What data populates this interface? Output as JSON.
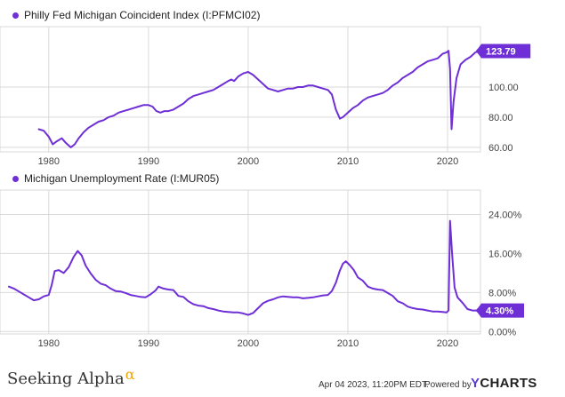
{
  "colors": {
    "series": "#6f2fd6",
    "grid": "#d9d9d9",
    "axis_text": "#444444",
    "badge_text": "#ffffff"
  },
  "chart_data": [
    {
      "type": "line",
      "legend": "Philly Fed Michigan Coincident Index (I:PFMCI02)",
      "x_ticks": [
        "1980",
        "1990",
        "2000",
        "2010",
        "2020"
      ],
      "y_ticks": [
        "60.00",
        "80.00",
        "100.00"
      ],
      "y_tick_values": [
        60,
        80,
        100
      ],
      "ylim": [
        57,
        140
      ],
      "xlim": [
        1976.0,
        2023.3
      ],
      "last_value_label": "123.79",
      "last_value": 123.79,
      "series": [
        {
          "x": [
            1979.0,
            1979.5,
            1980.0,
            1980.4,
            1980.8,
            1981.3,
            1981.7,
            1982.2,
            1982.6,
            1983.0,
            1983.5,
            1984.0,
            1984.5,
            1985.0,
            1985.5,
            1986.0,
            1986.5,
            1987.0,
            1987.5,
            1988.0,
            1988.5,
            1989.0,
            1989.5,
            1990.0,
            1990.4,
            1990.8,
            1991.2,
            1991.6,
            1992.0,
            1992.5,
            1993.0,
            1993.5,
            1994.0,
            1994.5,
            1995.0,
            1995.5,
            1996.0,
            1996.5,
            1997.0,
            1997.5,
            1998.0,
            1998.3,
            1998.6,
            1999.0,
            1999.5,
            2000.0,
            2000.5,
            2001.0,
            2001.5,
            2002.0,
            2002.5,
            2003.0,
            2003.5,
            2004.0,
            2004.5,
            2005.0,
            2005.5,
            2006.0,
            2006.5,
            2007.0,
            2007.5,
            2008.0,
            2008.4,
            2008.8,
            2009.2,
            2009.5,
            2010.0,
            2010.5,
            2011.0,
            2011.5,
            2012.0,
            2012.5,
            2013.0,
            2013.5,
            2014.0,
            2014.5,
            2015.0,
            2015.5,
            2016.0,
            2016.5,
            2017.0,
            2017.5,
            2018.0,
            2018.5,
            2019.0,
            2019.5,
            2019.9,
            2020.1,
            2020.25,
            2020.4,
            2020.6,
            2020.9,
            2021.3,
            2021.8,
            2022.3,
            2022.8,
            2023.1
          ],
          "y": [
            72,
            71,
            67,
            62,
            64,
            66,
            63,
            60,
            62,
            66,
            70,
            73,
            75,
            77,
            78,
            80,
            81,
            83,
            84,
            85,
            86,
            87,
            88,
            88,
            87,
            84,
            83,
            84,
            84,
            85,
            87,
            89,
            92,
            94,
            95,
            96,
            97,
            98,
            100,
            102,
            104,
            105,
            104,
            107,
            109,
            110,
            108,
            105,
            102,
            99,
            98,
            97,
            98,
            99,
            99,
            100,
            100,
            101,
            101,
            100,
            99,
            98,
            95,
            85,
            79,
            80,
            83,
            86,
            88,
            91,
            93,
            94,
            95,
            96,
            98,
            101,
            103,
            106,
            108,
            110,
            113,
            115,
            117,
            118,
            119,
            122,
            123,
            124,
            112,
            72,
            90,
            106,
            115,
            118,
            120,
            123,
            123.79
          ]
        }
      ]
    },
    {
      "type": "line",
      "legend": "Michigan Unemployment Rate (I:MUR05)",
      "x_ticks": [
        "1980",
        "1990",
        "2000",
        "2010",
        "2020"
      ],
      "y_ticks": [
        "0.00%",
        "8.00%",
        "16.00%",
        "24.00%"
      ],
      "y_tick_values": [
        0,
        8,
        16,
        24
      ],
      "ylim": [
        -0.5,
        29
      ],
      "xlim": [
        1976.0,
        2023.3
      ],
      "last_value_label": "4.30%",
      "last_value": 4.3,
      "series": [
        {
          "x": [
            1976.0,
            1976.5,
            1977.0,
            1977.5,
            1978.0,
            1978.5,
            1979.0,
            1979.5,
            1980.0,
            1980.3,
            1980.6,
            1981.0,
            1981.5,
            1982.0,
            1982.5,
            1982.9,
            1983.3,
            1983.7,
            1984.2,
            1984.7,
            1985.2,
            1985.7,
            1986.2,
            1986.7,
            1987.2,
            1987.7,
            1988.2,
            1988.7,
            1989.2,
            1989.7,
            1990.2,
            1990.7,
            1991.0,
            1991.5,
            1992.0,
            1992.5,
            1993.0,
            1993.5,
            1994.0,
            1994.5,
            1995.0,
            1995.5,
            1996.0,
            1996.5,
            1997.0,
            1997.5,
            1998.0,
            1998.5,
            1999.0,
            1999.5,
            2000.0,
            2000.5,
            2001.0,
            2001.5,
            2002.0,
            2002.5,
            2003.0,
            2003.5,
            2004.0,
            2004.5,
            2005.0,
            2005.5,
            2006.0,
            2006.5,
            2007.0,
            2007.5,
            2008.0,
            2008.4,
            2008.8,
            2009.2,
            2009.5,
            2009.8,
            2010.2,
            2010.6,
            2011.0,
            2011.5,
            2012.0,
            2012.5,
            2013.0,
            2013.5,
            2014.0,
            2014.5,
            2015.0,
            2015.5,
            2016.0,
            2016.5,
            2017.0,
            2017.5,
            2018.0,
            2018.5,
            2019.0,
            2019.5,
            2019.9,
            2020.1,
            2020.25,
            2020.45,
            2020.7,
            2021.0,
            2021.5,
            2022.0,
            2022.5,
            2023.1
          ],
          "y": [
            9.2,
            8.8,
            8.2,
            7.6,
            7.0,
            6.4,
            6.6,
            7.2,
            7.5,
            9.6,
            12.4,
            12.6,
            12.0,
            13.2,
            15.3,
            16.5,
            15.6,
            13.5,
            11.9,
            10.6,
            9.8,
            9.5,
            8.8,
            8.3,
            8.2,
            7.9,
            7.5,
            7.3,
            7.1,
            7.0,
            7.6,
            8.4,
            9.2,
            8.8,
            8.6,
            8.5,
            7.3,
            7.1,
            6.2,
            5.6,
            5.3,
            5.2,
            4.8,
            4.6,
            4.3,
            4.1,
            4.0,
            3.9,
            3.9,
            3.7,
            3.4,
            3.8,
            4.8,
            5.8,
            6.3,
            6.6,
            7.0,
            7.2,
            7.1,
            7.0,
            7.0,
            6.8,
            6.9,
            7.0,
            7.2,
            7.4,
            7.5,
            8.3,
            10.0,
            12.5,
            13.9,
            14.4,
            13.6,
            12.6,
            11.1,
            10.4,
            9.2,
            8.8,
            8.6,
            8.5,
            7.9,
            7.3,
            6.2,
            5.8,
            5.1,
            4.8,
            4.6,
            4.5,
            4.3,
            4.1,
            4.1,
            4.0,
            3.9,
            4.3,
            22.7,
            16.0,
            9.0,
            7.0,
            5.9,
            4.6,
            4.3,
            4.3
          ]
        }
      ]
    }
  ],
  "footer": {
    "brand": "Seeking Alpha",
    "brand_symbol": "α",
    "date": "Apr 04 2023, 11:20PM EDT.",
    "powered_by": "Powered by",
    "logo_y": "Y",
    "logo_rest": "CHARTS"
  }
}
